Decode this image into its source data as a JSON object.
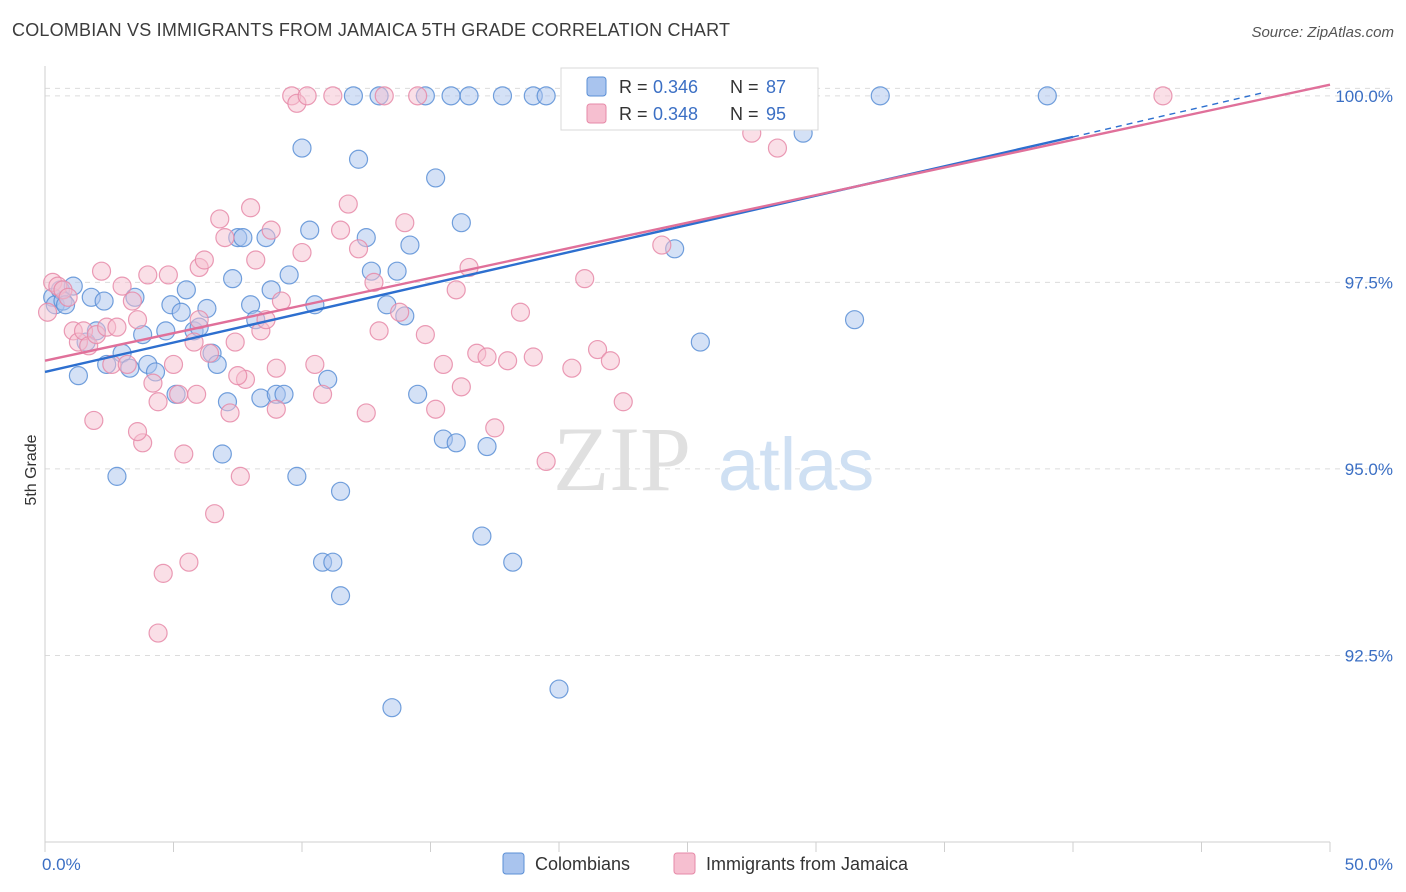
{
  "header": {
    "title": "COLOMBIAN VS IMMIGRANTS FROM JAMAICA 5TH GRADE CORRELATION CHART",
    "source": "Source: ZipAtlas.com"
  },
  "colors": {
    "blue_fill": "#a9c4ee",
    "blue_stroke": "#5b8fd6",
    "blue_line": "#2d6fcf",
    "pink_fill": "#f6bfd0",
    "pink_stroke": "#e68aa8",
    "pink_line": "#e0709a",
    "grid": "#dcdcdc",
    "tick_label": "#3b6fc4"
  },
  "legend": {
    "r_label": "R =",
    "n_label": "N =",
    "rows": [
      {
        "r": "0.346",
        "n": "87"
      },
      {
        "r": "0.348",
        "n": "95"
      }
    ]
  },
  "watermark": {
    "zip": "ZIP",
    "atlas": "atlas"
  },
  "chart_data": {
    "type": "scatter",
    "title": "COLOMBIAN VS IMMIGRANTS FROM JAMAICA 5TH GRADE CORRELATION CHART",
    "xlabel": "",
    "ylabel": "5th Grade",
    "xlim": [
      0,
      50
    ],
    "ylim": [
      90.0,
      100.4
    ],
    "x_tick_labels": [
      "0.0%",
      "50.0%"
    ],
    "y_ticks": [
      92.5,
      95.0,
      97.5,
      100.0
    ],
    "y_tick_labels": [
      "92.5%",
      "95.0%",
      "97.5%",
      "100.0%"
    ],
    "grid": true,
    "legend_position": "top-center",
    "series": [
      {
        "name": "Colombians",
        "r": 0.346,
        "n": 87,
        "trend": {
          "x0": 0,
          "y0": 96.3,
          "x1": 40,
          "y1": 99.45,
          "dashed_to_x": 47.5,
          "dashed_to_y": 100.05
        },
        "points": [
          [
            0.3,
            97.3
          ],
          [
            0.4,
            97.2
          ],
          [
            0.6,
            97.4
          ],
          [
            0.7,
            97.25
          ],
          [
            0.8,
            97.2
          ],
          [
            1.1,
            97.45
          ],
          [
            1.3,
            96.25
          ],
          [
            1.6,
            96.7
          ],
          [
            1.8,
            97.3
          ],
          [
            2.0,
            96.85
          ],
          [
            2.3,
            97.25
          ],
          [
            2.4,
            96.4
          ],
          [
            2.8,
            94.9
          ],
          [
            3.0,
            96.55
          ],
          [
            3.3,
            96.35
          ],
          [
            3.5,
            97.3
          ],
          [
            3.8,
            96.8
          ],
          [
            4.0,
            96.4
          ],
          [
            4.3,
            96.3
          ],
          [
            4.7,
            96.85
          ],
          [
            4.9,
            97.2
          ],
          [
            5.1,
            96.0
          ],
          [
            5.3,
            97.1
          ],
          [
            5.5,
            97.4
          ],
          [
            5.8,
            96.85
          ],
          [
            6.0,
            96.9
          ],
          [
            6.3,
            97.15
          ],
          [
            6.5,
            96.55
          ],
          [
            6.7,
            96.4
          ],
          [
            6.9,
            95.2
          ],
          [
            7.1,
            95.9
          ],
          [
            7.3,
            97.55
          ],
          [
            7.5,
            98.1
          ],
          [
            7.7,
            98.1
          ],
          [
            8.0,
            97.2
          ],
          [
            8.2,
            97.0
          ],
          [
            8.4,
            95.95
          ],
          [
            8.6,
            98.1
          ],
          [
            8.8,
            97.4
          ],
          [
            9.0,
            96.0
          ],
          [
            9.3,
            96.0
          ],
          [
            9.5,
            97.6
          ],
          [
            9.8,
            94.9
          ],
          [
            10.0,
            99.3
          ],
          [
            10.3,
            98.2
          ],
          [
            10.5,
            97.2
          ],
          [
            10.8,
            93.75
          ],
          [
            11.0,
            96.2
          ],
          [
            11.2,
            93.75
          ],
          [
            11.5,
            94.7
          ],
          [
            11.5,
            93.3
          ],
          [
            12.0,
            100.0
          ],
          [
            12.2,
            99.15
          ],
          [
            12.5,
            98.1
          ],
          [
            12.7,
            97.65
          ],
          [
            13.0,
            100.0
          ],
          [
            13.3,
            97.2
          ],
          [
            13.7,
            97.65
          ],
          [
            14.0,
            97.05
          ],
          [
            14.5,
            96.0
          ],
          [
            14.2,
            98.0
          ],
          [
            14.8,
            100.0
          ],
          [
            15.2,
            98.9
          ],
          [
            15.5,
            95.4
          ],
          [
            16.0,
            95.35
          ],
          [
            16.2,
            98.3
          ],
          [
            16.5,
            100.0
          ],
          [
            17.0,
            94.1
          ],
          [
            17.2,
            95.3
          ],
          [
            17.8,
            100.0
          ],
          [
            18.2,
            93.75
          ],
          [
            19.0,
            100.0
          ],
          [
            19.5,
            100.0
          ],
          [
            20.0,
            92.05
          ],
          [
            21.0,
            100.0
          ],
          [
            22.0,
            100.0
          ],
          [
            23.0,
            100.0
          ],
          [
            24.5,
            97.95
          ],
          [
            25.5,
            96.7
          ],
          [
            27.5,
            100.0
          ],
          [
            28.5,
            100.0
          ],
          [
            29.5,
            99.5
          ],
          [
            31.5,
            97.0
          ],
          [
            32.5,
            100.0
          ],
          [
            39.0,
            100.0
          ],
          [
            13.5,
            91.8
          ],
          [
            15.8,
            100.0
          ]
        ]
      },
      {
        "name": "Immigrants from Jamaica",
        "r": 0.348,
        "n": 95,
        "trend": {
          "x0": 0,
          "y0": 96.45,
          "x1": 50,
          "y1": 100.15
        },
        "points": [
          [
            0.1,
            97.1
          ],
          [
            0.3,
            97.5
          ],
          [
            0.5,
            97.45
          ],
          [
            0.7,
            97.4
          ],
          [
            0.9,
            97.3
          ],
          [
            1.1,
            96.85
          ],
          [
            1.3,
            96.7
          ],
          [
            1.5,
            96.85
          ],
          [
            1.7,
            96.65
          ],
          [
            1.9,
            95.65
          ],
          [
            2.0,
            96.8
          ],
          [
            2.2,
            97.65
          ],
          [
            2.4,
            96.9
          ],
          [
            2.6,
            96.4
          ],
          [
            2.8,
            96.9
          ],
          [
            3.0,
            97.45
          ],
          [
            3.2,
            96.4
          ],
          [
            3.4,
            97.25
          ],
          [
            3.6,
            97.0
          ],
          [
            3.8,
            95.35
          ],
          [
            4.0,
            97.6
          ],
          [
            4.2,
            96.15
          ],
          [
            4.4,
            95.9
          ],
          [
            4.6,
            93.6
          ],
          [
            4.4,
            92.8
          ],
          [
            4.8,
            97.6
          ],
          [
            5.0,
            96.4
          ],
          [
            5.2,
            96.0
          ],
          [
            5.4,
            95.2
          ],
          [
            5.6,
            93.75
          ],
          [
            5.8,
            96.7
          ],
          [
            6.0,
            97.7
          ],
          [
            6.2,
            97.8
          ],
          [
            6.4,
            96.55
          ],
          [
            6.6,
            94.4
          ],
          [
            6.8,
            98.35
          ],
          [
            7.0,
            98.1
          ],
          [
            7.2,
            95.75
          ],
          [
            7.4,
            96.7
          ],
          [
            7.6,
            94.9
          ],
          [
            7.8,
            96.2
          ],
          [
            8.0,
            98.5
          ],
          [
            8.2,
            97.8
          ],
          [
            8.4,
            96.85
          ],
          [
            8.6,
            97.0
          ],
          [
            8.8,
            98.2
          ],
          [
            9.0,
            96.35
          ],
          [
            9.2,
            97.25
          ],
          [
            9.6,
            100.0
          ],
          [
            9.8,
            99.9
          ],
          [
            10.0,
            97.9
          ],
          [
            10.2,
            100.0
          ],
          [
            10.5,
            96.4
          ],
          [
            10.8,
            96.0
          ],
          [
            11.2,
            100.0
          ],
          [
            11.5,
            98.2
          ],
          [
            11.8,
            98.55
          ],
          [
            12.2,
            97.95
          ],
          [
            12.8,
            97.5
          ],
          [
            13.2,
            100.0
          ],
          [
            13.8,
            97.1
          ],
          [
            14.5,
            100.0
          ],
          [
            14.8,
            96.8
          ],
          [
            15.2,
            95.8
          ],
          [
            15.5,
            96.4
          ],
          [
            16.0,
            97.4
          ],
          [
            16.2,
            96.1
          ],
          [
            16.5,
            97.7
          ],
          [
            16.8,
            96.55
          ],
          [
            17.2,
            96.5
          ],
          [
            17.5,
            95.55
          ],
          [
            18.0,
            96.45
          ],
          [
            18.5,
            97.1
          ],
          [
            19.0,
            96.5
          ],
          [
            19.5,
            95.1
          ],
          [
            20.5,
            96.35
          ],
          [
            21.0,
            97.55
          ],
          [
            21.5,
            96.6
          ],
          [
            22.0,
            96.45
          ],
          [
            22.5,
            95.9
          ],
          [
            23.5,
            100.0
          ],
          [
            24.0,
            98.0
          ],
          [
            25.0,
            100.0
          ],
          [
            26.5,
            100.0
          ],
          [
            27.5,
            99.5
          ],
          [
            28.5,
            99.3
          ],
          [
            43.5,
            100.0
          ],
          [
            3.6,
            95.5
          ],
          [
            6.0,
            97.0
          ],
          [
            9.0,
            95.8
          ],
          [
            12.5,
            95.75
          ],
          [
            13.0,
            96.85
          ],
          [
            14.0,
            98.3
          ],
          [
            5.9,
            96.0
          ],
          [
            7.5,
            96.25
          ]
        ]
      }
    ]
  }
}
